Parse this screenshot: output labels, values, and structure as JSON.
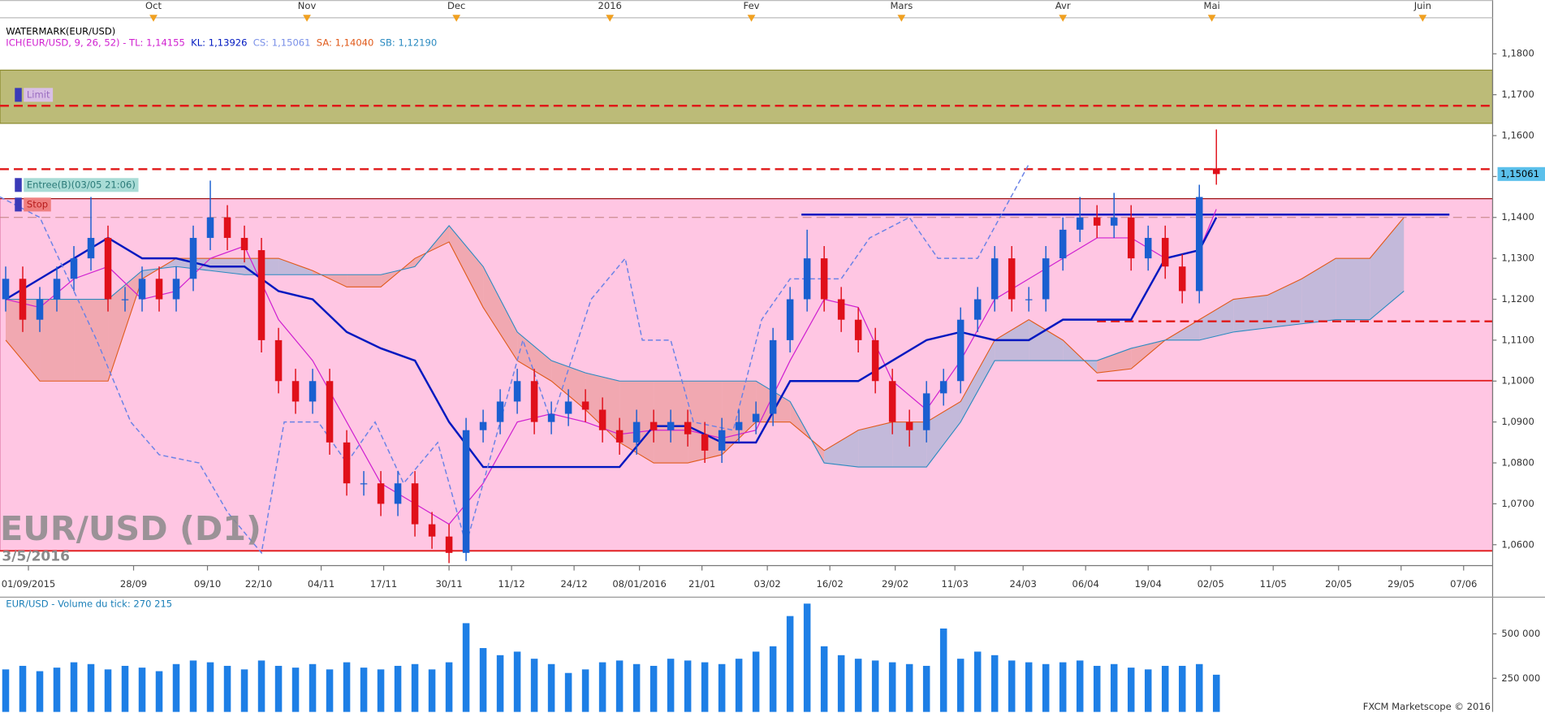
{
  "chart_data": {
    "type": "candlestick",
    "header": "WATERMARK(EUR/USD)",
    "legend": [
      {
        "text": "ICH(EUR/USD, 9, 26, 52) - TL: 1,14155",
        "color": "#d020d0"
      },
      {
        "text": "KL: 1,13926",
        "color": "#0018c0"
      },
      {
        "text": "CS: 1,15061",
        "color": "#7a90e8"
      },
      {
        "text": "SA: 1,14040",
        "color": "#e05a1a"
      },
      {
        "text": "SB: 1,12190",
        "color": "#2a8ac0"
      }
    ],
    "watermark": "EUR/USD (D1)",
    "watermark_date": "3/5/2016",
    "footer": "FXCM Marketscope © 2016",
    "up_color": "#1a5fd0",
    "down_color": "#e0101a",
    "xlim": [
      0,
      262.6
    ],
    "xticks": [
      {
        "value": 5,
        "label": "01/09/2015"
      },
      {
        "value": 23.5,
        "label": "28/09"
      },
      {
        "value": 36.5,
        "label": "09/10"
      },
      {
        "value": 45.5,
        "label": "22/10"
      },
      {
        "value": 56.5,
        "label": "04/11"
      },
      {
        "value": 67.5,
        "label": "17/11"
      },
      {
        "value": 79,
        "label": "30/11"
      },
      {
        "value": 90,
        "label": "11/12"
      },
      {
        "value": 101,
        "label": "24/12"
      },
      {
        "value": 112.5,
        "label": "08/01/2016"
      },
      {
        "value": 123.5,
        "label": "21/01"
      },
      {
        "value": 135,
        "label": "03/02"
      },
      {
        "value": 146,
        "label": "16/02"
      },
      {
        "value": 157.5,
        "label": "29/02"
      },
      {
        "value": 168,
        "label": "11/03"
      },
      {
        "value": 180,
        "label": "24/03"
      },
      {
        "value": 191,
        "label": "06/04"
      },
      {
        "value": 202,
        "label": "19/04"
      },
      {
        "value": 213,
        "label": "02/05"
      },
      {
        "value": 224,
        "label": "11/05"
      },
      {
        "value": 235.5,
        "label": "20/05"
      },
      {
        "value": 246.5,
        "label": "29/05"
      },
      {
        "value": 257.5,
        "label": "07/06"
      }
    ],
    "top_xticks": [
      {
        "value": 27,
        "label": "Oct"
      },
      {
        "value": 54,
        "label": "Nov"
      },
      {
        "value": 80.3,
        "label": "Dec"
      },
      {
        "value": 107.3,
        "label": "2016"
      },
      {
        "value": 132.2,
        "label": "Fev"
      },
      {
        "value": 158.6,
        "label": "Mars"
      },
      {
        "value": 187,
        "label": "Avr"
      },
      {
        "value": 213.2,
        "label": "Mai"
      },
      {
        "value": 250.3,
        "label": "Juin"
      }
    ],
    "ylim": [
      1.0549,
      1.1888
    ],
    "yticks": [
      {
        "value": 1.06,
        "label": "1,0600"
      },
      {
        "value": 1.07,
        "label": "1,0700"
      },
      {
        "value": 1.08,
        "label": "1,0800"
      },
      {
        "value": 1.09,
        "label": "1,0900"
      },
      {
        "value": 1.1,
        "label": "1,1000"
      },
      {
        "value": 1.11,
        "label": "1,1100"
      },
      {
        "value": 1.12,
        "label": "1,1200"
      },
      {
        "value": 1.13,
        "label": "1,1300"
      },
      {
        "value": 1.14,
        "label": "1,1400"
      },
      {
        "value": 1.15,
        "label": "1,1500"
      },
      {
        "value": 1.16,
        "label": "1,1600"
      },
      {
        "value": 1.17,
        "label": "1,1700"
      },
      {
        "value": 1.18,
        "label": "1,1800"
      }
    ],
    "last_price": {
      "value": 1.15061,
      "label": "1,15061"
    },
    "last_price_color": "#5bc0eb",
    "x": [
      1,
      4,
      7,
      10,
      13,
      16,
      19,
      22,
      25,
      28,
      31,
      34,
      37,
      40,
      43,
      46,
      49,
      52,
      55,
      58,
      61,
      64,
      67,
      70,
      73,
      76,
      79,
      82,
      85,
      88,
      91,
      94,
      97,
      100,
      103,
      106,
      109,
      112,
      115,
      118,
      121,
      124,
      127,
      130,
      133,
      136,
      139,
      142,
      145,
      148,
      151,
      154,
      157,
      160,
      163,
      166,
      169,
      172,
      175,
      178,
      181,
      184,
      187,
      190,
      193,
      196,
      199,
      202,
      205,
      208,
      211,
      214
    ],
    "open": [
      1.12,
      1.125,
      1.115,
      1.12,
      1.125,
      1.13,
      1.135,
      1.12,
      1.12,
      1.125,
      1.12,
      1.125,
      1.135,
      1.14,
      1.135,
      1.132,
      1.11,
      1.1,
      1.095,
      1.1,
      1.085,
      1.075,
      1.075,
      1.07,
      1.075,
      1.065,
      1.062,
      1.058,
      1.088,
      1.09,
      1.095,
      1.1,
      1.09,
      1.092,
      1.095,
      1.093,
      1.088,
      1.085,
      1.09,
      1.088,
      1.09,
      1.087,
      1.083,
      1.088,
      1.09,
      1.092,
      1.11,
      1.12,
      1.13,
      1.12,
      1.115,
      1.11,
      1.1,
      1.09,
      1.088,
      1.097,
      1.1,
      1.115,
      1.12,
      1.13,
      1.12,
      1.12,
      1.13,
      1.137,
      1.14,
      1.138,
      1.14,
      1.13,
      1.135,
      1.128,
      1.122,
      1.152
    ],
    "high": [
      1.128,
      1.128,
      1.123,
      1.128,
      1.133,
      1.145,
      1.138,
      1.123,
      1.128,
      1.128,
      1.128,
      1.138,
      1.149,
      1.143,
      1.138,
      1.135,
      1.113,
      1.103,
      1.103,
      1.103,
      1.088,
      1.078,
      1.078,
      1.078,
      1.078,
      1.068,
      1.065,
      1.091,
      1.093,
      1.098,
      1.103,
      1.103,
      1.095,
      1.098,
      1.098,
      1.096,
      1.091,
      1.093,
      1.093,
      1.093,
      1.093,
      1.09,
      1.091,
      1.093,
      1.095,
      1.113,
      1.123,
      1.137,
      1.133,
      1.123,
      1.118,
      1.113,
      1.103,
      1.093,
      1.1,
      1.103,
      1.118,
      1.123,
      1.133,
      1.133,
      1.123,
      1.133,
      1.14,
      1.145,
      1.143,
      1.146,
      1.143,
      1.138,
      1.138,
      1.131,
      1.148,
      1.1615
    ],
    "low": [
      1.117,
      1.112,
      1.112,
      1.117,
      1.122,
      1.127,
      1.117,
      1.117,
      1.117,
      1.117,
      1.117,
      1.122,
      1.132,
      1.132,
      1.129,
      1.107,
      1.097,
      1.092,
      1.092,
      1.082,
      1.072,
      1.072,
      1.067,
      1.067,
      1.062,
      1.059,
      1.0555,
      1.056,
      1.085,
      1.087,
      1.092,
      1.087,
      1.087,
      1.089,
      1.09,
      1.085,
      1.082,
      1.082,
      1.085,
      1.085,
      1.084,
      1.08,
      1.08,
      1.085,
      1.087,
      1.089,
      1.107,
      1.117,
      1.117,
      1.112,
      1.107,
      1.097,
      1.087,
      1.084,
      1.085,
      1.094,
      1.097,
      1.112,
      1.117,
      1.117,
      1.117,
      1.117,
      1.127,
      1.134,
      1.135,
      1.135,
      1.127,
      1.127,
      1.125,
      1.119,
      1.119,
      1.148
    ],
    "close": [
      1.125,
      1.115,
      1.12,
      1.125,
      1.13,
      1.135,
      1.12,
      1.12,
      1.125,
      1.12,
      1.125,
      1.135,
      1.14,
      1.135,
      1.132,
      1.11,
      1.1,
      1.095,
      1.1,
      1.085,
      1.075,
      1.075,
      1.07,
      1.075,
      1.065,
      1.062,
      1.058,
      1.088,
      1.09,
      1.095,
      1.1,
      1.09,
      1.092,
      1.095,
      1.093,
      1.088,
      1.085,
      1.09,
      1.088,
      1.09,
      1.087,
      1.083,
      1.088,
      1.09,
      1.092,
      1.11,
      1.12,
      1.13,
      1.12,
      1.115,
      1.11,
      1.1,
      1.09,
      1.088,
      1.097,
      1.1,
      1.115,
      1.12,
      1.13,
      1.12,
      1.12,
      1.13,
      1.137,
      1.14,
      1.138,
      1.14,
      1.13,
      1.135,
      1.128,
      1.122,
      1.145,
      1.1506
    ],
    "zones": [
      {
        "from": 1.0585,
        "to": 1.1446,
        "color": "#ffc6e3",
        "border": "#e07aa8"
      },
      {
        "from": 1.163,
        "to": 1.176,
        "color": "#bcbb78",
        "border": "#8a8a2c"
      }
    ],
    "cloud": {
      "x": [
        1,
        7,
        13,
        19,
        25,
        31,
        37,
        43,
        49,
        55,
        61,
        67,
        73,
        79,
        85,
        91,
        97,
        103,
        109,
        115,
        121,
        127,
        133,
        139,
        145,
        151,
        157,
        163,
        169,
        175,
        181,
        187,
        193,
        199,
        205,
        211,
        217,
        223,
        229,
        235,
        241,
        247
      ],
      "sa": [
        1.11,
        1.1,
        1.1,
        1.1,
        1.125,
        1.13,
        1.13,
        1.13,
        1.13,
        1.127,
        1.123,
        1.123,
        1.13,
        1.134,
        1.118,
        1.105,
        1.1,
        1.093,
        1.085,
        1.08,
        1.08,
        1.082,
        1.09,
        1.09,
        1.083,
        1.088,
        1.09,
        1.09,
        1.095,
        1.11,
        1.115,
        1.11,
        1.102,
        1.103,
        1.11,
        1.115,
        1.12,
        1.121,
        1.125,
        1.13,
        1.13,
        1.14
      ],
      "sb": [
        1.12,
        1.12,
        1.12,
        1.12,
        1.127,
        1.128,
        1.127,
        1.126,
        1.126,
        1.126,
        1.126,
        1.126,
        1.128,
        1.138,
        1.128,
        1.112,
        1.105,
        1.102,
        1.1,
        1.1,
        1.1,
        1.1,
        1.1,
        1.095,
        1.08,
        1.079,
        1.079,
        1.079,
        1.09,
        1.105,
        1.105,
        1.105,
        1.105,
        1.108,
        1.11,
        1.11,
        1.112,
        1.113,
        1.114,
        1.115,
        1.115,
        1.122
      ],
      "sa_color": "#e05a1a",
      "sb_color": "#2a8ac0",
      "up_fill": "#b9b6d8",
      "down_fill": "#eea2a8"
    },
    "indicators": [
      {
        "color": "#d020d0",
        "width": 1,
        "dash": false,
        "x": [
          1,
          7,
          13,
          19,
          25,
          31,
          37,
          43,
          49,
          55,
          61,
          67,
          73,
          79,
          85,
          91,
          97,
          103,
          109,
          115,
          121,
          127,
          133,
          139,
          145,
          151,
          157,
          163,
          169,
          175,
          181,
          187,
          193,
          199,
          205,
          211,
          214
        ],
        "values": [
          1.12,
          1.118,
          1.125,
          1.128,
          1.12,
          1.122,
          1.13,
          1.133,
          1.115,
          1.105,
          1.09,
          1.075,
          1.07,
          1.065,
          1.075,
          1.09,
          1.092,
          1.09,
          1.087,
          1.088,
          1.088,
          1.086,
          1.088,
          1.105,
          1.12,
          1.118,
          1.1,
          1.093,
          1.105,
          1.12,
          1.125,
          1.13,
          1.135,
          1.135,
          1.13,
          1.132,
          1.142
        ]
      },
      {
        "color": "#0018c0",
        "width": 2,
        "dash": false,
        "x": [
          1,
          7,
          13,
          19,
          25,
          31,
          37,
          43,
          49,
          55,
          61,
          67,
          73,
          79,
          85,
          91,
          97,
          103,
          109,
          115,
          121,
          127,
          133,
          139,
          145,
          151,
          157,
          163,
          169,
          175,
          181,
          187,
          193,
          199,
          205,
          211,
          214
        ],
        "values": [
          1.12,
          1.125,
          1.13,
          1.135,
          1.13,
          1.13,
          1.128,
          1.128,
          1.122,
          1.12,
          1.112,
          1.108,
          1.105,
          1.09,
          1.079,
          1.079,
          1.079,
          1.079,
          1.079,
          1.089,
          1.089,
          1.085,
          1.085,
          1.1,
          1.1,
          1.1,
          1.105,
          1.11,
          1.112,
          1.11,
          1.11,
          1.115,
          1.115,
          1.115,
          1.13,
          1.132,
          1.14
        ]
      },
      {
        "color": "#6a82e6",
        "width": 1.2,
        "dash": true,
        "x": [
          0,
          7,
          12,
          17,
          23,
          28,
          35,
          40,
          46,
          50,
          56,
          61,
          66,
          71,
          77,
          82,
          87,
          92,
          97,
          104,
          110,
          113,
          118,
          122,
          129,
          134,
          139,
          148,
          153,
          160,
          165,
          172,
          181
        ],
        "values": [
          1.145,
          1.14,
          1.125,
          1.11,
          1.09,
          1.082,
          1.08,
          1.068,
          1.058,
          1.09,
          1.09,
          1.08,
          1.09,
          1.075,
          1.085,
          1.06,
          1.085,
          1.11,
          1.09,
          1.12,
          1.13,
          1.11,
          1.11,
          1.09,
          1.088,
          1.115,
          1.125,
          1.125,
          1.135,
          1.14,
          1.13,
          1.13,
          1.153
        ]
      }
    ],
    "hlines": [
      {
        "price": 1.1673,
        "color": "#e01818",
        "dash": true,
        "width": 2
      },
      {
        "price": 1.1518,
        "color": "#e01818",
        "dash": true,
        "width": 2
      },
      {
        "price": 1.1446,
        "color": "#a01818",
        "dash": false,
        "width": 1
      },
      {
        "price": 1.14,
        "color": "#c08080",
        "dash": true,
        "width": 0.8
      },
      {
        "price": 1.1407,
        "color": "#0018c0",
        "dash": false,
        "width": 2,
        "x": [
          141,
          255
        ]
      },
      {
        "price": 1.1146,
        "color": "#e01818",
        "dash": true,
        "width": 2,
        "x": [
          193,
          262.6
        ]
      },
      {
        "price": 1.1001,
        "color": "#e01818",
        "dash": false,
        "width": 1.5,
        "x": [
          193,
          262.6
        ]
      },
      {
        "price": 1.0585,
        "color": "#e01818",
        "dash": false,
        "width": 1.5
      }
    ],
    "orders": [
      {
        "label": "Limit",
        "price": 1.1673,
        "box": "#d9bfe6",
        "text_color": "#9a6cc0"
      },
      {
        "label": "Entree(B)(03/05 21:06)",
        "price": 1.1518,
        "box": "#a9dcd6",
        "text_color": "#2a7a78"
      },
      {
        "label": "Stop",
        "price": 1.1446,
        "box": "#ef7f7f",
        "text_color": "#b81c1c"
      }
    ],
    "volume": {
      "label": "EUR/USD - Volume du tick: 270 215",
      "color": "#1e7fe6",
      "ylim": [
        61000,
        706000
      ],
      "yticks": [
        {
          "value": 250000,
          "label": "250 000"
        },
        {
          "value": 500000,
          "label": "500 000"
        }
      ],
      "values": [
        300000,
        320000,
        290000,
        310000,
        340000,
        330000,
        300000,
        320000,
        310000,
        290000,
        330000,
        350000,
        340000,
        320000,
        300000,
        350000,
        320000,
        310000,
        330000,
        300000,
        340000,
        310000,
        300000,
        320000,
        330000,
        300000,
        340000,
        560000,
        420000,
        380000,
        400000,
        360000,
        330000,
        280000,
        300000,
        340000,
        350000,
        330000,
        320000,
        360000,
        350000,
        340000,
        330000,
        360000,
        400000,
        430000,
        600000,
        670000,
        430000,
        380000,
        360000,
        350000,
        340000,
        330000,
        320000,
        530000,
        360000,
        400000,
        380000,
        350000,
        340000,
        330000,
        340000,
        350000,
        320000,
        330000,
        310000,
        300000,
        320000,
        320000,
        330000,
        270215
      ]
    }
  }
}
